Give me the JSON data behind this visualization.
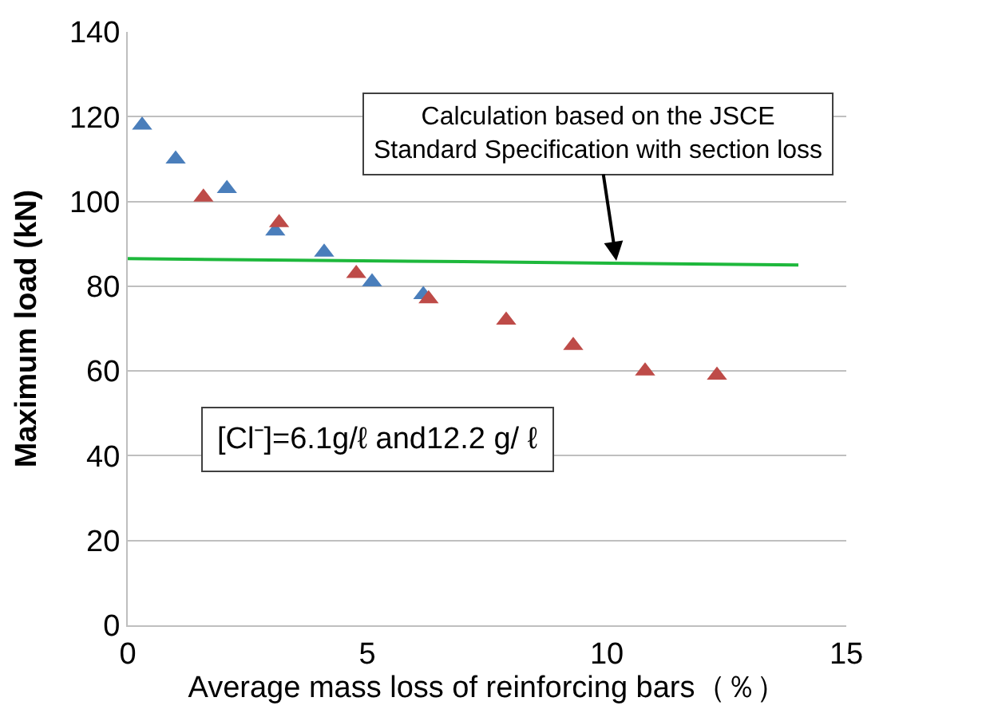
{
  "chart_data": {
    "type": "scatter",
    "xlabel": "Average mass loss of reinforcing bars（％）",
    "ylabel": "Maximum load (kN)",
    "xlim": [
      0,
      15
    ],
    "xticks": [
      0,
      5,
      10,
      15
    ],
    "ylim": [
      0,
      140
    ],
    "yticks": [
      0,
      20,
      40,
      60,
      80,
      100,
      120,
      140
    ],
    "grid": "y",
    "marker": "triangle",
    "series": [
      {
        "color": "#4a7ebb",
        "x": [
          0.3,
          1.0,
          2.07,
          3.08,
          4.1,
          5.1,
          6.17
        ],
        "values": [
          118,
          110,
          103,
          93,
          88,
          81,
          78
        ]
      },
      {
        "color": "#be4b48",
        "x": [
          1.58,
          3.16,
          4.77,
          6.28,
          7.9,
          9.3,
          10.8,
          12.3
        ],
        "values": [
          101,
          95,
          83,
          77,
          72,
          66,
          60,
          59
        ]
      },
      {
        "type": "line",
        "marker": "none",
        "color": "#1eb83c",
        "x": [
          0,
          7,
          14
        ],
        "values": [
          86.5,
          85.8,
          85
        ]
      }
    ],
    "annotations": [
      {
        "text": "Calculation based on the JSCE\nStandard Specification with section loss",
        "x": 10.2,
        "y": 86
      },
      "[Cl⁻]=6.1g/ℓ and12.2 g/ ℓ"
    ]
  }
}
